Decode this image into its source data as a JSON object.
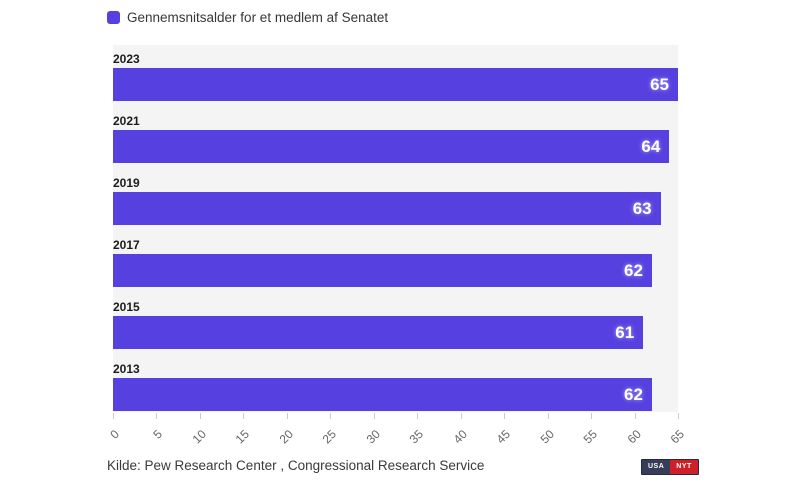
{
  "legend": {
    "label": "Gennemsnitsalder for et medlem af Senatet",
    "color": "#5640e0"
  },
  "chart_data": {
    "type": "bar",
    "orientation": "horizontal",
    "title": "Gennemsnitsalder for et medlem af Senatet",
    "categories": [
      "2023",
      "2021",
      "2019",
      "2017",
      "2015",
      "2013"
    ],
    "values": [
      65,
      64,
      63,
      62,
      61,
      62
    ],
    "xlim": [
      0,
      65
    ],
    "x_ticks": [
      0,
      5,
      10,
      15,
      20,
      25,
      30,
      35,
      40,
      45,
      50,
      55,
      60,
      65
    ],
    "bar_color": "#5640e0",
    "plot_background": "#f4f4f4",
    "grid": false,
    "legend_position": "top-left",
    "value_labels": "inside-end"
  },
  "footer": {
    "source": "Kilde: Pew Research Center , Congressional Research Service",
    "badges": [
      {
        "label": "USA",
        "color": "#373d59"
      },
      {
        "label": "NYT",
        "color": "#ce2029"
      }
    ]
  }
}
